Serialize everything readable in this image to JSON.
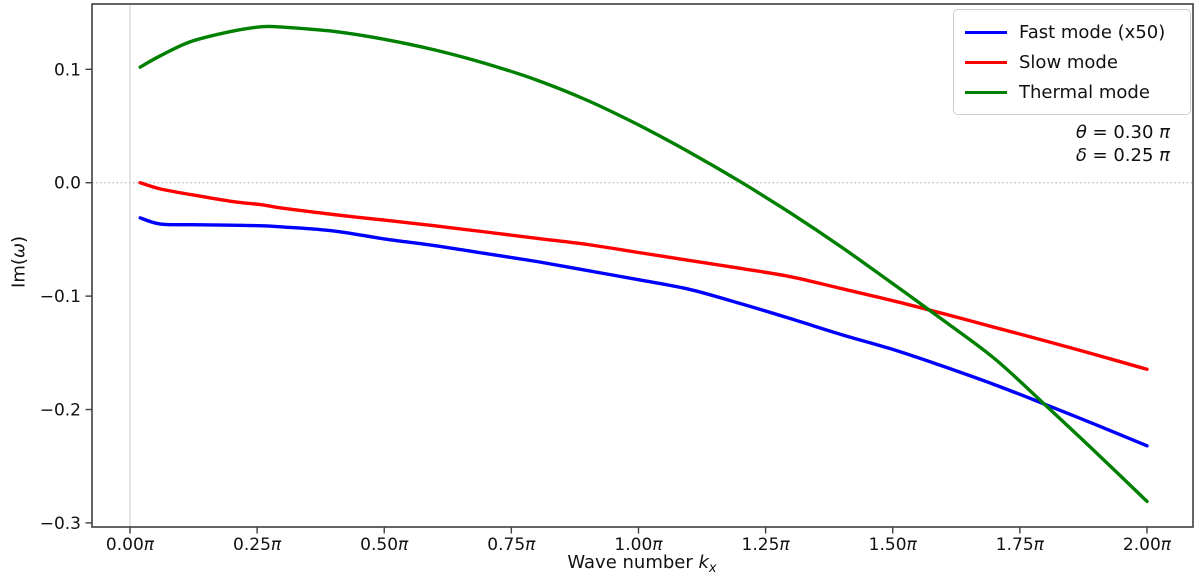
{
  "figure": {
    "ylabel": {
      "prefix": "Im(",
      "symbol": "ω",
      "suffix": ")"
    },
    "xlabel": {
      "text": "Wave number ",
      "math_symbol": "k",
      "math_sub": "x"
    },
    "legend": {
      "items": [
        {
          "label": "Fast mode (x50)",
          "color": "#0000ff"
        },
        {
          "label": "Slow mode",
          "color": "#ff0000"
        },
        {
          "label": "Thermal mode",
          "color": "#008000"
        }
      ]
    },
    "annotation": {
      "lines": [
        {
          "symbol": "θ",
          "mid": " = 0.30 ",
          "pi": "π"
        },
        {
          "symbol": "δ",
          "mid": " = 0.25 ",
          "pi": "π"
        }
      ]
    }
  },
  "chart_data": {
    "type": "line",
    "title": "",
    "xlabel": "Wave number k_x",
    "ylabel": "Im(ω)",
    "x_units": "π",
    "xlim_pi": [
      -0.0747,
      2.0905
    ],
    "ylim": [
      -0.3036,
      0.1576
    ],
    "grid": false,
    "legend_position": "upper right",
    "reference_lines": {
      "horizontal_y": 0.0,
      "vertical_x_pi": 0.0
    },
    "xticks": {
      "values_pi": [
        0,
        0.25,
        0.5,
        0.75,
        1.0,
        1.25,
        1.5,
        1.75,
        2.0
      ],
      "labels": [
        "0.00π",
        "0.25π",
        "0.50π",
        "0.75π",
        "1.00π",
        "1.25π",
        "1.50π",
        "1.75π",
        "2.00π"
      ]
    },
    "yticks": {
      "values": [
        0.1,
        0.0,
        -0.1,
        -0.2,
        -0.3
      ],
      "labels": [
        "0.1",
        "0.0",
        "−0.1",
        "−0.2",
        "−0.3"
      ]
    },
    "x_pi": [
      0.02,
      0.06,
      0.12,
      0.2,
      0.26,
      0.3,
      0.4,
      0.5,
      0.6,
      0.7,
      0.8,
      0.9,
      1.0,
      1.1,
      1.2,
      1.3,
      1.4,
      1.5,
      1.6,
      1.7,
      1.8,
      1.9,
      2.0
    ],
    "series": [
      {
        "name": "Fast mode (x50)",
        "color": "#0000ff",
        "values": [
          -0.031,
          -0.0365,
          -0.037,
          -0.0375,
          -0.038,
          -0.039,
          -0.0425,
          -0.0495,
          -0.0555,
          -0.0625,
          -0.0695,
          -0.0775,
          -0.0855,
          -0.094,
          -0.1065,
          -0.12,
          -0.134,
          -0.147,
          -0.162,
          -0.178,
          -0.1955,
          -0.2135,
          -0.232
        ]
      },
      {
        "name": "Slow mode",
        "color": "#ff0000",
        "values": [
          0.0,
          -0.0055,
          -0.0105,
          -0.0165,
          -0.0195,
          -0.0225,
          -0.028,
          -0.033,
          -0.038,
          -0.0435,
          -0.049,
          -0.0545,
          -0.0615,
          -0.0685,
          -0.0755,
          -0.083,
          -0.0935,
          -0.104,
          -0.1155,
          -0.1275,
          -0.1395,
          -0.1518,
          -0.1645
        ]
      },
      {
        "name": "Thermal mode",
        "color": "#008000",
        "values": [
          0.102,
          0.112,
          0.1245,
          0.1335,
          0.1376,
          0.1372,
          0.1335,
          0.1265,
          0.117,
          0.105,
          0.0905,
          0.0725,
          0.051,
          0.027,
          0.001,
          -0.027,
          -0.057,
          -0.089,
          -0.1215,
          -0.155,
          -0.196,
          -0.238,
          -0.281
        ]
      }
    ],
    "notable_points": {
      "thermal_peak_pi": [
        0.26,
        0.1376
      ],
      "thermal_zero_crossing_pi": 1.2,
      "thermal_slow_crossing_pi": [
        1.57,
        -0.113
      ],
      "thermal_fast_crossing_pi": [
        1.79,
        -0.194
      ]
    }
  }
}
